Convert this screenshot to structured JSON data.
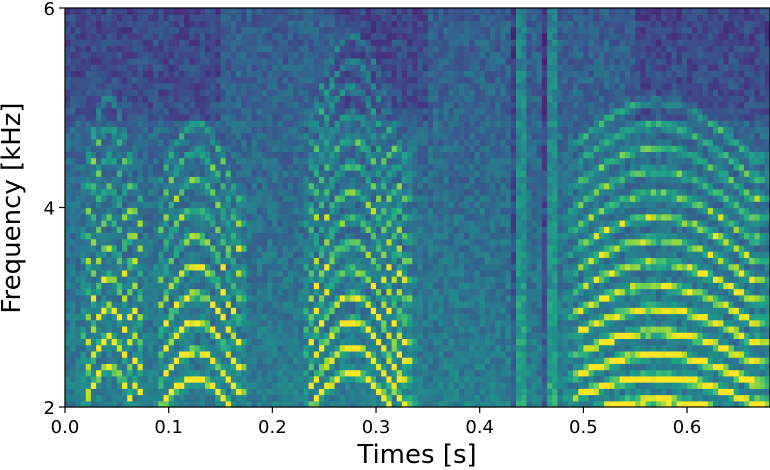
{
  "chart_data": {
    "type": "heatmap",
    "title": "",
    "xlabel": "Times [s]",
    "ylabel": "Frequency [kHz]",
    "xlim": [
      0.0,
      0.68
    ],
    "ylim": [
      2,
      6
    ],
    "xticks": [
      0.0,
      0.1,
      0.2,
      0.3,
      0.4,
      0.5,
      0.6
    ],
    "xtick_labels": [
      "0.0",
      "0.1",
      "0.2",
      "0.3",
      "0.4",
      "0.5",
      "0.6"
    ],
    "yticks": [
      2,
      4,
      6
    ],
    "ytick_labels": [
      "2",
      "4",
      "6"
    ],
    "colormap": "viridis",
    "grid": false,
    "legend": "none",
    "time_bins": 136,
    "frequency_bins": 64,
    "segments": [
      {
        "t0": 0.015,
        "t1": 0.078,
        "f0_start_khz": 0.24,
        "f0_peak_khz": 0.3,
        "harmonics_from": 8,
        "harmonics_to": 17
      },
      {
        "t0": 0.086,
        "t1": 0.178,
        "f0_start_khz": 0.24,
        "f0_peak_khz": 0.285,
        "harmonics_from": 8,
        "harmonics_to": 17
      },
      {
        "t0": 0.228,
        "t1": 0.34,
        "f0_start_khz": 0.205,
        "f0_peak_khz": 0.26,
        "harmonics_from": 9,
        "harmonics_to": 22
      },
      {
        "t0": 0.478,
        "t1": 0.69,
        "f0_start_khz": 0.205,
        "f0_peak_khz": 0.23,
        "harmonics_from": 9,
        "harmonics_to": 22
      }
    ],
    "broadband_columns_s": [
      0.433,
      0.44,
      0.463,
      0.47
    ]
  }
}
